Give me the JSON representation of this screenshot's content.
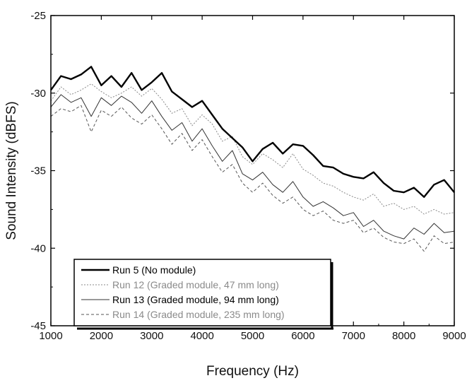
{
  "chart_data": {
    "type": "line",
    "title": "",
    "xlabel": "Frequency (Hz)",
    "ylabel": "Sound Intensity (dBFS)",
    "xlim": [
      1000,
      9000
    ],
    "ylim": [
      -45,
      -25
    ],
    "xticks": [
      1000,
      2000,
      3000,
      4000,
      5000,
      6000,
      7000,
      8000,
      9000
    ],
    "yticks": [
      -45,
      -40,
      -35,
      -30,
      -25
    ],
    "grid": false,
    "legend_position": "bottom-left",
    "series": [
      {
        "name": "Run 5 (No module)",
        "color": "#000000",
        "style": "solid-thick",
        "x": [
          1000,
          1200,
          1400,
          1600,
          1800,
          2000,
          2200,
          2400,
          2600,
          2800,
          3000,
          3200,
          3400,
          3600,
          3800,
          4000,
          4200,
          4400,
          4600,
          4800,
          5000,
          5200,
          5400,
          5600,
          5800,
          6000,
          6200,
          6400,
          6600,
          6800,
          7000,
          7200,
          7400,
          7600,
          7800,
          8000,
          8200,
          8400,
          8600,
          8800,
          9000
        ],
        "y": [
          -29.8,
          -28.9,
          -29.1,
          -28.8,
          -28.3,
          -29.5,
          -28.9,
          -29.6,
          -28.7,
          -29.8,
          -29.3,
          -28.7,
          -29.9,
          -30.4,
          -30.9,
          -30.5,
          -31.4,
          -32.3,
          -32.9,
          -33.5,
          -34.4,
          -33.6,
          -33.2,
          -33.9,
          -33.3,
          -33.4,
          -34.0,
          -34.7,
          -34.8,
          -35.2,
          -35.4,
          -35.5,
          -35.1,
          -35.8,
          -36.3,
          -36.4,
          -36.1,
          -36.7,
          -35.9,
          -35.6,
          -36.4
        ]
      },
      {
        "name": "Run 12 (Graded module, 47 mm long)",
        "color": "#888888",
        "style": "dotted",
        "x": [
          1000,
          1200,
          1400,
          1600,
          1800,
          2000,
          2200,
          2400,
          2600,
          2800,
          3000,
          3200,
          3400,
          3600,
          3800,
          4000,
          4200,
          4400,
          4600,
          4800,
          5000,
          5200,
          5400,
          5600,
          5800,
          6000,
          6200,
          6400,
          6600,
          6800,
          7000,
          7200,
          7400,
          7600,
          7800,
          8000,
          8200,
          8400,
          8600,
          8800,
          9000
        ],
        "y": [
          -30.5,
          -29.6,
          -30.1,
          -29.8,
          -29.4,
          -29.9,
          -30.3,
          -30.0,
          -29.6,
          -30.2,
          -29.7,
          -30.4,
          -31.3,
          -31.0,
          -32.1,
          -31.4,
          -32.0,
          -33.1,
          -32.8,
          -34.1,
          -34.6,
          -33.9,
          -34.3,
          -34.8,
          -33.9,
          -34.9,
          -35.3,
          -35.8,
          -36.0,
          -36.4,
          -36.7,
          -36.9,
          -36.5,
          -37.3,
          -37.1,
          -37.5,
          -37.3,
          -37.8,
          -37.5,
          -37.8,
          -37.7
        ]
      },
      {
        "name": "Run 13 (Graded module, 94 mm long)",
        "color": "#333333",
        "style": "solid-thin",
        "x": [
          1000,
          1200,
          1400,
          1600,
          1800,
          2000,
          2200,
          2400,
          2600,
          2800,
          3000,
          3200,
          3400,
          3600,
          3800,
          4000,
          4200,
          4400,
          4600,
          4800,
          5000,
          5200,
          5400,
          5600,
          5800,
          6000,
          6200,
          6400,
          6600,
          6800,
          7000,
          7200,
          7400,
          7600,
          7800,
          8000,
          8200,
          8400,
          8600,
          8800,
          9000
        ],
        "y": [
          -30.9,
          -30.1,
          -30.6,
          -30.3,
          -31.5,
          -30.3,
          -30.8,
          -30.2,
          -30.6,
          -31.3,
          -30.5,
          -31.5,
          -32.4,
          -31.9,
          -33.1,
          -32.3,
          -33.4,
          -34.4,
          -33.7,
          -35.2,
          -35.6,
          -35.1,
          -35.9,
          -36.4,
          -35.7,
          -36.7,
          -37.3,
          -37.0,
          -37.4,
          -37.9,
          -37.7,
          -38.6,
          -38.2,
          -38.9,
          -39.2,
          -39.4,
          -38.7,
          -39.1,
          -38.4,
          -39.0,
          -38.9
        ]
      },
      {
        "name": "Run 14 (Graded module, 235 mm long)",
        "color": "#555555",
        "style": "dashed",
        "x": [
          1000,
          1200,
          1400,
          1600,
          1800,
          2000,
          2200,
          2400,
          2600,
          2800,
          3000,
          3200,
          3400,
          3600,
          3800,
          4000,
          4200,
          4400,
          4600,
          4800,
          5000,
          5200,
          5400,
          5600,
          5800,
          6000,
          6200,
          6400,
          6600,
          6800,
          7000,
          7200,
          7400,
          7600,
          7800,
          8000,
          8200,
          8400,
          8600,
          8800,
          9000
        ],
        "y": [
          -31.5,
          -31.0,
          -31.2,
          -30.8,
          -32.5,
          -31.1,
          -31.5,
          -30.9,
          -31.6,
          -32.0,
          -31.4,
          -32.3,
          -33.3,
          -32.6,
          -33.7,
          -33.0,
          -34.1,
          -35.1,
          -34.6,
          -35.8,
          -36.4,
          -35.8,
          -36.6,
          -37.1,
          -36.7,
          -37.5,
          -37.9,
          -37.6,
          -38.2,
          -38.4,
          -38.2,
          -39.0,
          -38.7,
          -39.3,
          -39.6,
          -39.7,
          -39.4,
          -40.2,
          -39.2,
          -39.7,
          -39.6
        ]
      }
    ]
  }
}
